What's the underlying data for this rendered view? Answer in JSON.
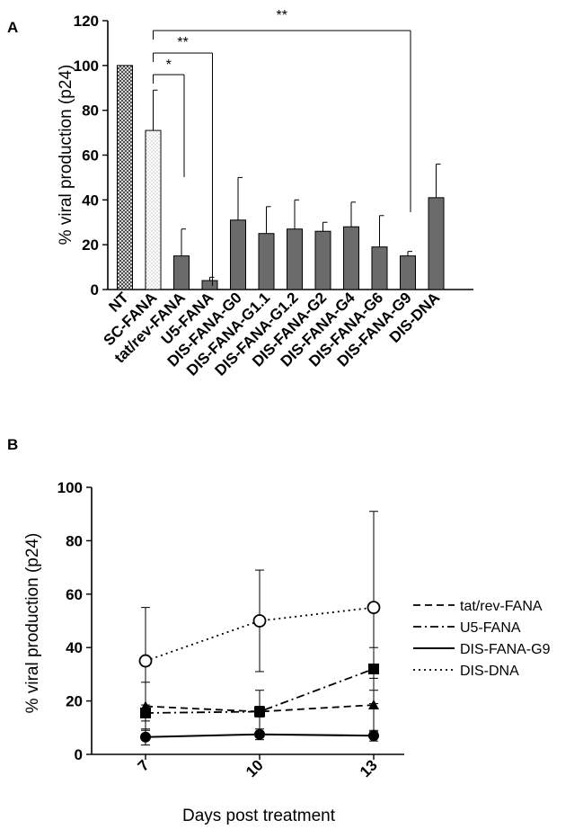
{
  "chart_data": [
    {
      "panel_label": "A",
      "type": "bar",
      "xlabel": "",
      "ylabel": "% viral production (p24)",
      "ylim": [
        0,
        120
      ],
      "yticks": [
        0,
        20,
        40,
        60,
        80,
        100,
        120
      ],
      "categories": [
        "NT",
        "SC-FANA",
        "tat/rev-FANA",
        "U5-FANA",
        "DIS-FANA-G0",
        "DIS-FANA-G1.1",
        "DIS-FANA-G1.2",
        "DIS-FANA-G2",
        "DIS-FANA-G4",
        "DIS-FANA-G6",
        "DIS-FANA-G9",
        "DIS-DNA"
      ],
      "values": [
        100,
        71,
        15,
        4,
        31,
        25,
        27,
        26,
        28,
        19,
        15,
        41
      ],
      "error": [
        0,
        18,
        12,
        1.5,
        19,
        12,
        13,
        4,
        11,
        14,
        2,
        15
      ],
      "fills": [
        "crosshatch",
        "dots",
        "solid",
        "solid",
        "solid",
        "solid",
        "solid",
        "solid",
        "solid",
        "solid",
        "solid",
        "solid"
      ],
      "significance": [
        {
          "from": "SC-FANA",
          "to": "tat/rev-FANA",
          "label": "*"
        },
        {
          "from": "SC-FANA",
          "to": "U5-FANA",
          "label": "**"
        },
        {
          "from": "SC-FANA",
          "to": "DIS-FANA-G9",
          "label": "**"
        }
      ],
      "grid": false
    },
    {
      "panel_label": "B",
      "type": "line",
      "xlabel": "Days post treatment",
      "ylabel": "% viral production (p24)",
      "ylim": [
        0,
        100
      ],
      "yticks": [
        0,
        20,
        40,
        60,
        80,
        100
      ],
      "x": [
        7,
        10,
        13
      ],
      "grid": false,
      "legend_position": "right",
      "series": [
        {
          "name": "tat/rev-FANA",
          "values": [
            18,
            16,
            18.5
          ],
          "error": [
            9,
            8,
            10
          ],
          "marker": "triangle",
          "line": "dashed"
        },
        {
          "name": "U5-FANA",
          "values": [
            15.5,
            16,
            32
          ],
          "error": [
            3,
            2,
            8
          ],
          "marker": "square",
          "line": "dashdot"
        },
        {
          "name": "DIS-FANA-G9",
          "values": [
            6.5,
            7.5,
            7
          ],
          "error": [
            3,
            2,
            2
          ],
          "marker": "circle-filled",
          "line": "solid"
        },
        {
          "name": "DIS-DNA",
          "values": [
            35,
            50,
            55
          ],
          "error": [
            20,
            19,
            36
          ],
          "marker": "circle-open",
          "line": "dotted"
        }
      ]
    }
  ]
}
